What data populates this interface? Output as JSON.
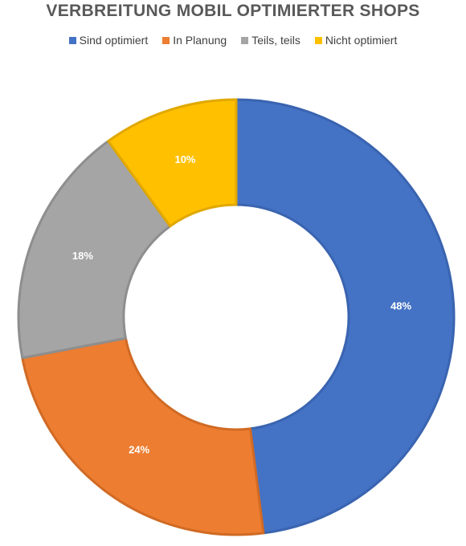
{
  "chart_data": {
    "type": "donut",
    "title": "VERBREITUNG MOBIL OPTIMIERTER SHOPS",
    "legend_position": "top",
    "categories": [
      "Sind optimiert",
      "In Planung",
      "Teils, teils",
      "Nicht optimiert"
    ],
    "values": [
      48,
      24,
      18,
      10
    ],
    "labels": [
      "48%",
      "24%",
      "18%",
      "10%"
    ],
    "colors": [
      "#4472C4",
      "#ED7D31",
      "#A5A5A5",
      "#FFC000"
    ],
    "border_colors": [
      "#3A64B0",
      "#D06A24",
      "#8E8E8E",
      "#E0A800"
    ]
  }
}
